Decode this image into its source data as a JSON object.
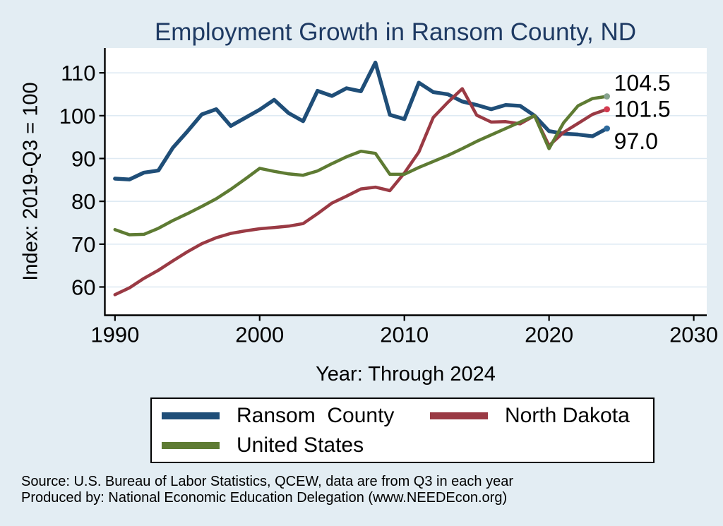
{
  "title": "Employment Growth in Ransom County, ND",
  "colors": {
    "background": "#e3edf3",
    "plot_background": "#ffffff",
    "gridline": "#dfeaf3",
    "axis": "#000000",
    "title_text": "#1e3a63"
  },
  "chart_data": {
    "type": "line",
    "title": "Employment Growth in Ransom County, ND",
    "xlabel": "Year: Through 2024",
    "ylabel": "Index: 2019-Q3 = 100",
    "grid": "horizontal",
    "legend_position": "bottom",
    "xlim": [
      1989.3,
      2030.9
    ],
    "ylim": [
      53.4,
      115.8
    ],
    "xticks": [
      1990,
      2000,
      2010,
      2020,
      2030
    ],
    "yticks": [
      60,
      70,
      80,
      90,
      100,
      110
    ],
    "x": [
      1990,
      1991,
      1992,
      1993,
      1994,
      1995,
      1996,
      1997,
      1998,
      1999,
      2000,
      2001,
      2002,
      2003,
      2004,
      2005,
      2006,
      2007,
      2008,
      2009,
      2010,
      2011,
      2012,
      2013,
      2014,
      2015,
      2016,
      2017,
      2018,
      2019,
      2020,
      2021,
      2022,
      2023,
      2024
    ],
    "series": [
      {
        "name": "Ransom  County",
        "color": "#1F4E78",
        "dot_color": "#2E6B9D",
        "end_label": "97.0",
        "values": [
          85.3,
          85.1,
          86.7,
          87.2,
          92.5,
          96.3,
          100.3,
          101.5,
          97.6,
          99.5,
          101.4,
          103.7,
          100.6,
          98.7,
          105.8,
          104.6,
          106.4,
          105.7,
          112.4,
          100.2,
          99.2,
          107.7,
          105.5,
          105.0,
          103.3,
          102.5,
          101.5,
          102.5,
          102.3,
          100.0,
          96.4,
          95.8,
          95.6,
          95.2,
          97.0
        ]
      },
      {
        "name": "North Dakota",
        "color": "#9A3A44",
        "dot_color": "#D43B50",
        "end_label": "101.5",
        "values": [
          58.2,
          59.8,
          62.0,
          63.9,
          66.1,
          68.2,
          70.1,
          71.5,
          72.5,
          73.1,
          73.6,
          73.9,
          74.2,
          74.8,
          77.1,
          79.6,
          81.2,
          82.9,
          83.3,
          82.5,
          86.6,
          91.5,
          99.6,
          103.1,
          106.3,
          100.1,
          98.5,
          98.6,
          98.1,
          100.0,
          93.0,
          96.1,
          98.2,
          100.3,
          101.5
        ]
      },
      {
        "name": "United States",
        "color": "#5E7B33",
        "dot_color": "#87A38F",
        "end_label": "104.5",
        "values": [
          73.4,
          72.2,
          72.3,
          73.7,
          75.5,
          77.1,
          78.8,
          80.6,
          82.8,
          85.2,
          87.7,
          87.0,
          86.4,
          86.1,
          87.1,
          88.8,
          90.4,
          91.7,
          91.2,
          86.3,
          86.3,
          87.9,
          89.3,
          90.7,
          92.3,
          94.0,
          95.5,
          97.0,
          98.5,
          100.0,
          92.3,
          98.3,
          102.3,
          104.0,
          104.5
        ]
      }
    ]
  },
  "footer": {
    "line1": "Source: U.S. Bureau of Labor Statistics, QCEW, data are from Q3 in each year",
    "line2": "Produced by: National Economic Education Delegation (www.NEEDEcon.org)"
  }
}
